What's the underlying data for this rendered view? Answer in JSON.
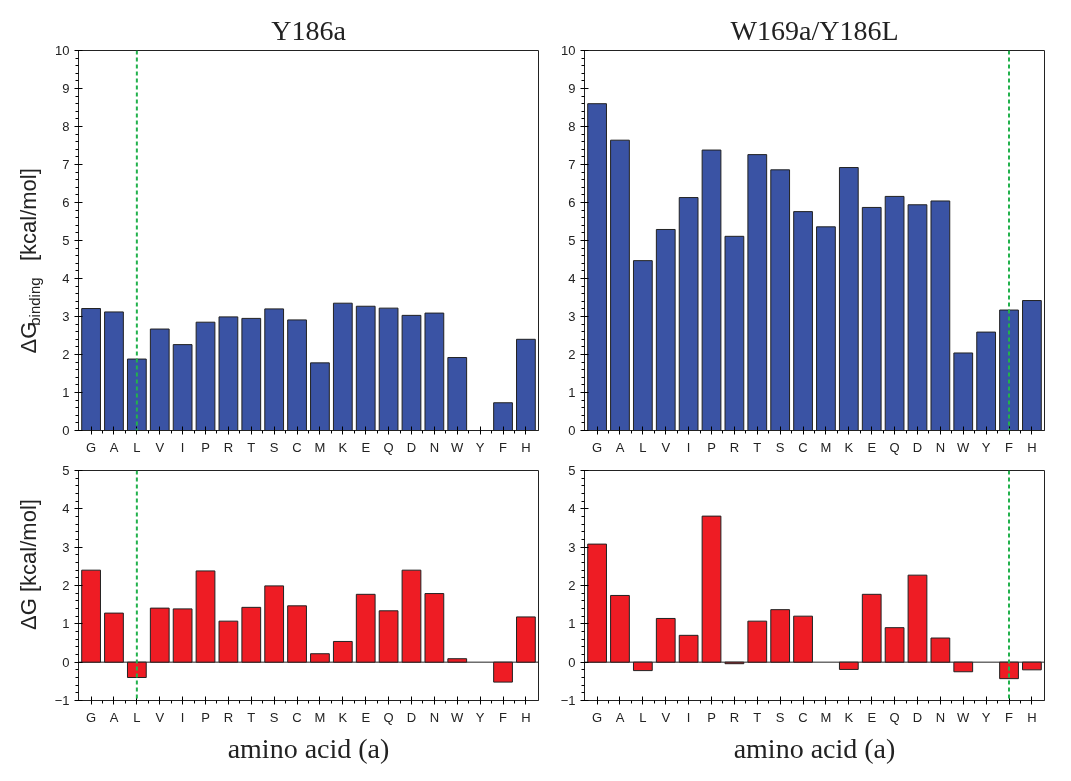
{
  "chart_data": [
    {
      "type": "bar",
      "title": "Y186a",
      "ylabel": "ΔG$_{binding}$ [kcal/mol]",
      "categories": [
        "G",
        "A",
        "L",
        "V",
        "I",
        "P",
        "R",
        "T",
        "S",
        "C",
        "M",
        "K",
        "E",
        "Q",
        "D",
        "N",
        "W",
        "Y",
        "F",
        "H"
      ],
      "values": [
        3.21,
        3.12,
        1.88,
        2.67,
        2.26,
        2.85,
        2.99,
        2.95,
        3.2,
        2.91,
        1.78,
        3.35,
        3.27,
        3.22,
        3.03,
        3.09,
        1.92,
        null,
        0.73,
        2.4
      ],
      "color": "#3a53a4",
      "ylim": [
        0,
        10
      ],
      "yticks": [
        0,
        1,
        2,
        3,
        4,
        5,
        6,
        7,
        8,
        9,
        10
      ],
      "grid": false,
      "ref_lines": [
        {
          "axis": "x",
          "value": "L",
          "color": "#22b14c",
          "line_style": "dashed"
        }
      ]
    },
    {
      "type": "bar",
      "title": "W169a/Y186L",
      "categories": [
        "G",
        "A",
        "L",
        "V",
        "I",
        "P",
        "R",
        "T",
        "S",
        "C",
        "M",
        "K",
        "E",
        "Q",
        "D",
        "N",
        "W",
        "Y",
        "F",
        "H"
      ],
      "values": [
        8.6,
        7.64,
        4.47,
        5.29,
        6.13,
        7.38,
        5.11,
        7.26,
        6.86,
        5.76,
        5.36,
        6.92,
        5.87,
        6.16,
        5.94,
        6.04,
        2.04,
        2.59,
        3.17,
        3.42
      ],
      "color": "#3a53a4",
      "ylim": [
        0,
        10
      ],
      "yticks": [
        0,
        1,
        2,
        3,
        4,
        5,
        6,
        7,
        8,
        9,
        10
      ],
      "grid": false,
      "ref_lines": [
        {
          "axis": "x",
          "value": "F",
          "color": "#22b14c",
          "line_style": "dashed"
        }
      ]
    },
    {
      "type": "bar",
      "ylabel": "ΔG [kcal/mol]",
      "xlabel": "amino acid (a)",
      "categories": [
        "G",
        "A",
        "L",
        "V",
        "I",
        "P",
        "R",
        "T",
        "S",
        "C",
        "M",
        "K",
        "E",
        "Q",
        "D",
        "N",
        "W",
        "Y",
        "F",
        "H"
      ],
      "values": [
        2.4,
        1.28,
        -0.4,
        1.41,
        1.39,
        2.38,
        1.07,
        1.43,
        1.99,
        1.47,
        0.22,
        0.54,
        1.77,
        1.34,
        2.4,
        1.79,
        0.09,
        null,
        -0.52,
        1.18
      ],
      "color": "#ee1c24",
      "ylim": [
        -1,
        5
      ],
      "yticks": [
        -1,
        0,
        1,
        2,
        3,
        4,
        5
      ],
      "grid": false,
      "ref_lines": [
        {
          "axis": "x",
          "value": "L",
          "color": "#22b14c",
          "line_style": "dashed"
        }
      ]
    },
    {
      "type": "bar",
      "xlabel": "amino acid (a)",
      "categories": [
        "G",
        "A",
        "L",
        "V",
        "I",
        "P",
        "R",
        "T",
        "S",
        "C",
        "M",
        "K",
        "E",
        "Q",
        "D",
        "N",
        "W",
        "Y",
        "F",
        "H"
      ],
      "values": [
        3.08,
        1.74,
        -0.22,
        1.14,
        0.7,
        3.81,
        -0.04,
        1.07,
        1.37,
        1.2,
        null,
        -0.19,
        1.77,
        0.9,
        2.27,
        0.63,
        -0.25,
        null,
        -0.43,
        -0.2
      ],
      "color": "#ee1c24",
      "ylim": [
        -1,
        5
      ],
      "yticks": [
        -1,
        0,
        1,
        2,
        3,
        4,
        5
      ],
      "grid": false,
      "ref_lines": [
        {
          "axis": "x",
          "value": "F",
          "color": "#22b14c",
          "line_style": "dashed"
        }
      ]
    }
  ]
}
